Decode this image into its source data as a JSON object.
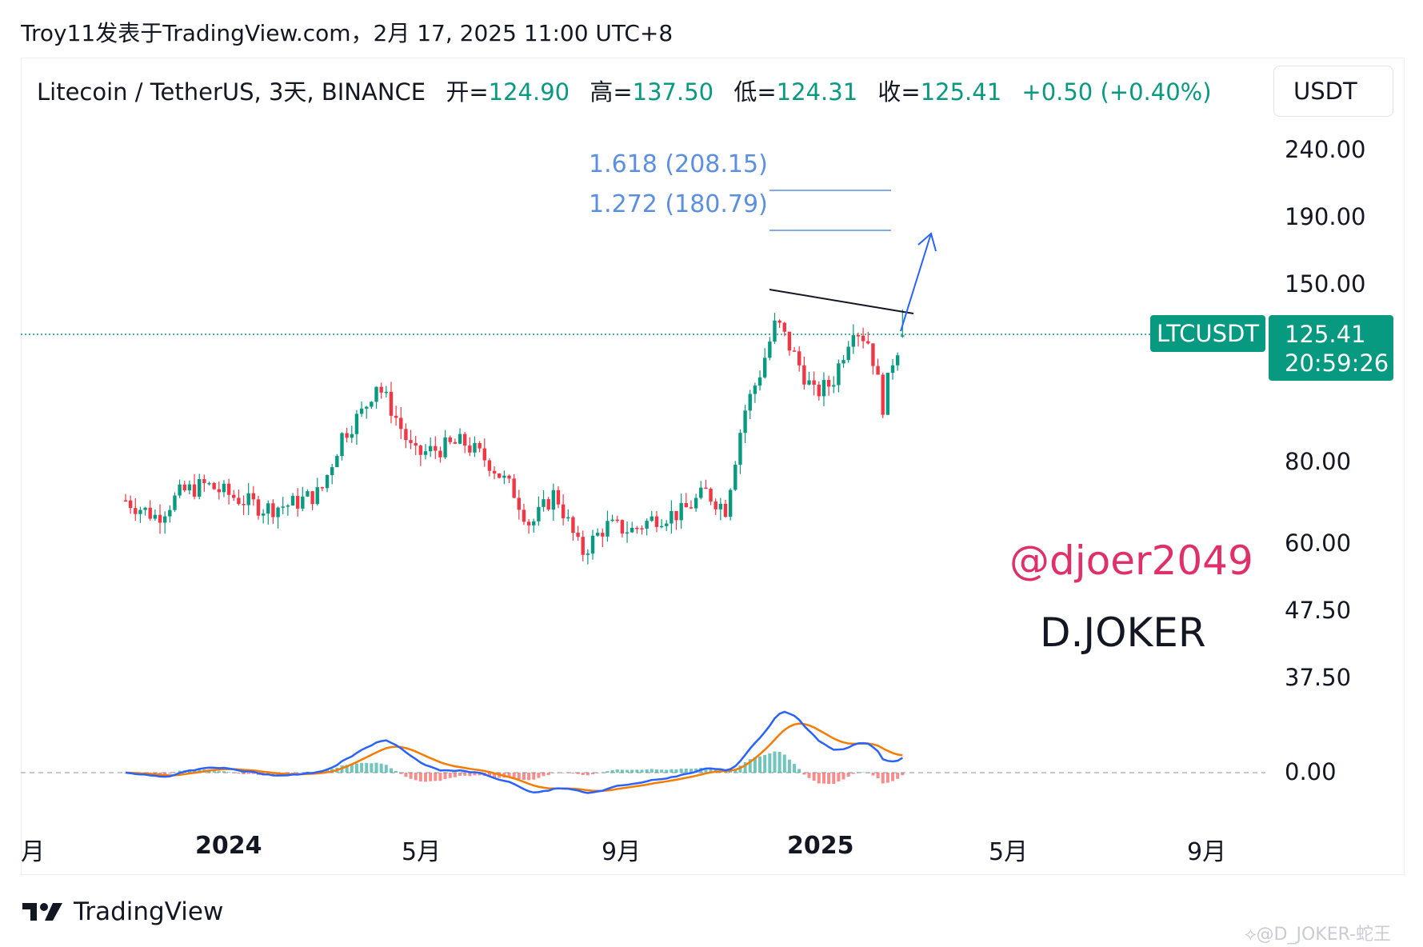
{
  "header": {
    "publication": "Troy11发表于TradingView.com，2月 17, 2025 11:00 UTC+8"
  },
  "legend": {
    "symbol_desc": "Litecoin / TetherUS, 3天, BINANCE",
    "open_label": "开=",
    "open_value": "124.90",
    "high_label": "高=",
    "high_value": "137.50",
    "low_label": "低=",
    "low_value": "124.31",
    "close_label": "收=",
    "close_value": "125.41",
    "change": "+0.50 (+0.40%)"
  },
  "currency_button": "USDT",
  "price_scale": [
    "240.00",
    "190.00",
    "150.00",
    "80.00",
    "60.00",
    "47.50",
    "37.50",
    "0.00"
  ],
  "symbol_tag": "LTCUSDT",
  "price_tag": {
    "price": "125.41",
    "countdown": "20:59:26"
  },
  "fib_levels": [
    {
      "ratio_text": "1.618 (208.15)",
      "ratio": 1.618,
      "price": 208.15
    },
    {
      "ratio_text": "1.272 (180.79)",
      "ratio": 1.272,
      "price": 180.79
    }
  ],
  "time_axis": [
    {
      "label": "月",
      "bold": false
    },
    {
      "label": "2024",
      "bold": true
    },
    {
      "label": "5月",
      "bold": false
    },
    {
      "label": "9月",
      "bold": false
    },
    {
      "label": "2025",
      "bold": true
    },
    {
      "label": "5月",
      "bold": false
    },
    {
      "label": "9月",
      "bold": false
    }
  ],
  "watermark": {
    "handle": "@djoer2049",
    "name": "D.JOKER"
  },
  "brand": {
    "name": "TradingView"
  },
  "corner_credit": "⟡@D_JOKER-蛇王",
  "colors": {
    "up": "#089981",
    "down": "#f23645",
    "fib": "#5b8fe0",
    "macd": "#2962ff",
    "signal": "#f57c00",
    "arrow": "#2962ff"
  },
  "chart_data": {
    "type": "candlestick",
    "symbol": "LTCUSDT",
    "interval": "3天",
    "exchange": "BINANCE",
    "y_scale": "log",
    "last_price": 125.41,
    "ohlc_last": {
      "open": 124.9,
      "high": 137.5,
      "low": 124.31,
      "close": 125.41
    },
    "close_path": [
      [
        "2023-11-01",
        70
      ],
      [
        "2023-11-20",
        66
      ],
      [
        "2023-12-05",
        72
      ],
      [
        "2023-12-20",
        74
      ],
      [
        "2024-01-05",
        71
      ],
      [
        "2024-01-25",
        68
      ],
      [
        "2024-02-10",
        69
      ],
      [
        "2024-02-28",
        72
      ],
      [
        "2024-03-12",
        88
      ],
      [
        "2024-03-25",
        96
      ],
      [
        "2024-04-02",
        106
      ],
      [
        "2024-04-12",
        96
      ],
      [
        "2024-04-25",
        82
      ],
      [
        "2024-05-10",
        84
      ],
      [
        "2024-05-25",
        86
      ],
      [
        "2024-06-10",
        80
      ],
      [
        "2024-06-25",
        72
      ],
      [
        "2024-07-05",
        64
      ],
      [
        "2024-07-20",
        72
      ],
      [
        "2024-08-05",
        58
      ],
      [
        "2024-08-20",
        64
      ],
      [
        "2024-09-05",
        63
      ],
      [
        "2024-09-20",
        66
      ],
      [
        "2024-10-05",
        67
      ],
      [
        "2024-10-20",
        72
      ],
      [
        "2024-11-01",
        68
      ],
      [
        "2024-11-12",
        95
      ],
      [
        "2024-11-22",
        110
      ],
      [
        "2024-12-02",
        132
      ],
      [
        "2024-12-12",
        118
      ],
      [
        "2024-12-25",
        102
      ],
      [
        "2025-01-05",
        106
      ],
      [
        "2025-01-18",
        130
      ],
      [
        "2025-01-28",
        122
      ],
      [
        "2025-02-05",
        98
      ],
      [
        "2025-02-11",
        115
      ],
      [
        "2025-02-17",
        125.41
      ]
    ],
    "trendline": {
      "from": [
        "2024-12-02",
        147
      ],
      "to": [
        "2025-02-20",
        134
      ]
    },
    "projection_arrow": {
      "from": [
        "2025-02-17",
        128
      ],
      "to": [
        "2025-02-28",
        185
      ]
    },
    "indicator": "MACD",
    "indicator_zero": 0.0,
    "x_ticks": [
      "月",
      "2024",
      "5月",
      "9月",
      "2025",
      "5月",
      "9月"
    ]
  }
}
